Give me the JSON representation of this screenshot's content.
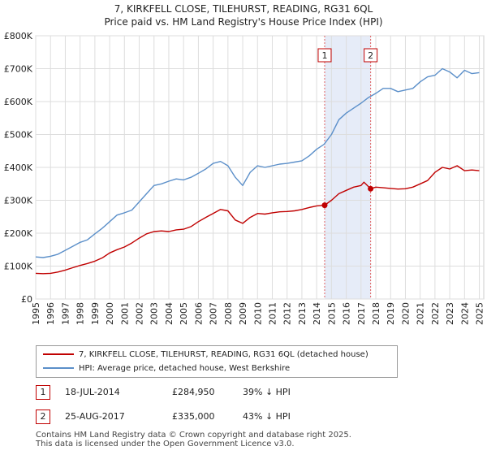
{
  "title_line1": "7, KIRKFELL CLOSE, TILEHURST, READING, RG31 6QL",
  "title_line2": "Price paid vs. HM Land Registry's House Price Index (HPI)",
  "legend": {
    "property_label": "7, KIRKFELL CLOSE, TILEHURST, READING, RG31 6QL (detached house)",
    "hpi_label": "HPI: Average price, detached house, West Berkshire"
  },
  "sales": [
    {
      "num": "1",
      "date": "18-JUL-2014",
      "price": "£284,950",
      "hpi": "39% ↓ HPI"
    },
    {
      "num": "2",
      "date": "25-AUG-2017",
      "price": "£335,000",
      "hpi": "43% ↓ HPI"
    }
  ],
  "footer_line1": "Contains HM Land Registry data © Crown copyright and database right 2025.",
  "footer_line2": "This data is licensed under the Open Government Licence v3.0.",
  "colors": {
    "property": "#c00000",
    "hpi": "#5b8fc9",
    "grid": "#dddddd",
    "shade": "#e6ecf8"
  },
  "chart_data": {
    "type": "line",
    "title": "Price paid vs. HM Land Registry's House Price Index (HPI)",
    "xlabel": "",
    "ylabel": "",
    "xlim": [
      1995,
      2025.3
    ],
    "ylim": [
      0,
      800000
    ],
    "yticks": [
      0,
      100000,
      200000,
      300000,
      400000,
      500000,
      600000,
      700000,
      800000
    ],
    "ytick_labels": [
      "£0",
      "£100K",
      "£200K",
      "£300K",
      "£400K",
      "£500K",
      "£600K",
      "£700K",
      "£800K"
    ],
    "xticks": [
      1995,
      1996,
      1997,
      1998,
      1999,
      2000,
      2001,
      2002,
      2003,
      2004,
      2005,
      2006,
      2007,
      2008,
      2009,
      2010,
      2011,
      2012,
      2013,
      2014,
      2015,
      2016,
      2017,
      2018,
      2019,
      2020,
      2021,
      2022,
      2023,
      2024,
      2025
    ],
    "xtick_labels": [
      "1995",
      "1996",
      "1997",
      "1998",
      "1999",
      "2000",
      "2001",
      "2002",
      "2003",
      "2004",
      "2005",
      "2006",
      "2007",
      "2008",
      "2009",
      "2010",
      "2011",
      "2012",
      "2013",
      "2014",
      "2015",
      "2016",
      "2017",
      "2018",
      "2019",
      "2020",
      "2021",
      "2022",
      "2023",
      "2024",
      "2025"
    ],
    "shaded_range": [
      2014.54,
      2017.65
    ],
    "series": [
      {
        "name": "HPI: Average price, detached house, West Berkshire",
        "x": [
          1995,
          1995.5,
          1996,
          1996.5,
          1997,
          1997.5,
          1998,
          1998.5,
          1999,
          1999.5,
          2000,
          2000.5,
          2001,
          2001.5,
          2002,
          2002.5,
          2003,
          2003.5,
          2004,
          2004.5,
          2005,
          2005.5,
          2006,
          2006.5,
          2007,
          2007.5,
          2008,
          2008.5,
          2009,
          2009.5,
          2010,
          2010.5,
          2011,
          2011.5,
          2012,
          2012.5,
          2013,
          2013.5,
          2014,
          2014.5,
          2015,
          2015.5,
          2016,
          2016.5,
          2017,
          2017.5,
          2018,
          2018.5,
          2019,
          2019.5,
          2020,
          2020.5,
          2021,
          2021.5,
          2022,
          2022.5,
          2023,
          2023.5,
          2024,
          2024.5,
          2025
        ],
        "values": [
          128000,
          126000,
          130000,
          136000,
          148000,
          160000,
          172000,
          180000,
          198000,
          215000,
          235000,
          255000,
          262000,
          270000,
          295000,
          320000,
          345000,
          350000,
          358000,
          365000,
          362000,
          370000,
          382000,
          395000,
          412000,
          418000,
          405000,
          370000,
          345000,
          385000,
          405000,
          400000,
          405000,
          410000,
          412000,
          416000,
          420000,
          435000,
          455000,
          470000,
          500000,
          545000,
          565000,
          580000,
          595000,
          612000,
          625000,
          640000,
          640000,
          630000,
          635000,
          640000,
          660000,
          675000,
          680000,
          700000,
          690000,
          672000,
          695000,
          685000,
          688000
        ]
      },
      {
        "name": "7, KIRKFELL CLOSE, TILEHURST, READING, RG31 6QL (detached house)",
        "x": [
          1995,
          1995.5,
          1996,
          1996.5,
          1997,
          1997.5,
          1998,
          1998.5,
          1999,
          1999.5,
          2000,
          2000.5,
          2001,
          2001.5,
          2002,
          2002.5,
          2003,
          2003.5,
          2004,
          2004.5,
          2005,
          2005.5,
          2006,
          2006.5,
          2007,
          2007.5,
          2008,
          2008.5,
          2009,
          2009.5,
          2010,
          2010.5,
          2011,
          2011.5,
          2012,
          2012.5,
          2013,
          2013.5,
          2014,
          2014.54,
          2015,
          2015.5,
          2016,
          2016.5,
          2017,
          2017.2,
          2017.65,
          2018,
          2018.5,
          2019,
          2019.5,
          2020,
          2020.5,
          2021,
          2021.5,
          2022,
          2022.5,
          2023,
          2023.5,
          2024,
          2024.5,
          2025
        ],
        "values": [
          78000,
          77000,
          78000,
          82000,
          88000,
          95000,
          102000,
          108000,
          115000,
          125000,
          140000,
          150000,
          158000,
          170000,
          185000,
          198000,
          205000,
          207000,
          205000,
          210000,
          212000,
          220000,
          235000,
          248000,
          260000,
          272000,
          268000,
          240000,
          230000,
          248000,
          260000,
          258000,
          262000,
          265000,
          266000,
          268000,
          272000,
          278000,
          283000,
          284950,
          300000,
          320000,
          330000,
          340000,
          345000,
          355000,
          335000,
          340000,
          338000,
          336000,
          334000,
          335000,
          340000,
          350000,
          360000,
          385000,
          400000,
          395000,
          405000,
          390000,
          392000,
          390000
        ]
      }
    ],
    "annotations": [
      {
        "label": "1",
        "x": 2014.54,
        "y": 284950
      },
      {
        "label": "2",
        "x": 2017.65,
        "y": 335000
      }
    ]
  }
}
